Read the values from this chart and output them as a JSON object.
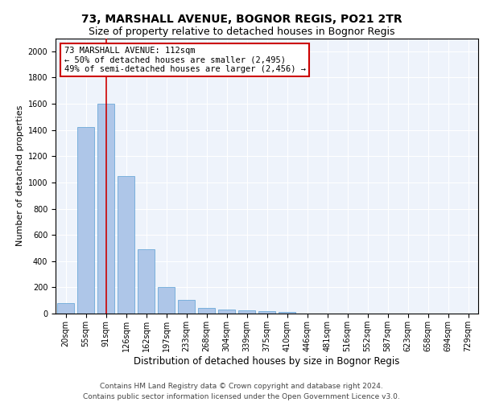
{
  "title": "73, MARSHALL AVENUE, BOGNOR REGIS, PO21 2TR",
  "subtitle": "Size of property relative to detached houses in Bognor Regis",
  "xlabel": "Distribution of detached houses by size in Bognor Regis",
  "ylabel": "Number of detached properties",
  "bar_labels": [
    "20sqm",
    "55sqm",
    "91sqm",
    "126sqm",
    "162sqm",
    "197sqm",
    "233sqm",
    "268sqm",
    "304sqm",
    "339sqm",
    "375sqm",
    "410sqm",
    "446sqm",
    "481sqm",
    "516sqm",
    "552sqm",
    "587sqm",
    "623sqm",
    "658sqm",
    "694sqm",
    "729sqm"
  ],
  "bar_values": [
    80,
    1420,
    1600,
    1050,
    490,
    205,
    105,
    40,
    28,
    22,
    18,
    15,
    0,
    0,
    0,
    0,
    0,
    0,
    0,
    0,
    0
  ],
  "bar_color": "#aec6e8",
  "bar_edge_color": "#5a9fd4",
  "background_color": "#eef3fb",
  "grid_color": "#ffffff",
  "annotation_line1": "73 MARSHALL AVENUE: 112sqm",
  "annotation_line2": "← 50% of detached houses are smaller (2,495)",
  "annotation_line3": "49% of semi-detached houses are larger (2,456) →",
  "annotation_box_color": "#ffffff",
  "annotation_box_edge": "#cc0000",
  "red_line_x": 2.0,
  "ylim": [
    0,
    2100
  ],
  "yticks": [
    0,
    200,
    400,
    600,
    800,
    1000,
    1200,
    1400,
    1600,
    1800,
    2000
  ],
  "footer_text": "Contains HM Land Registry data © Crown copyright and database right 2024.\nContains public sector information licensed under the Open Government Licence v3.0.",
  "title_fontsize": 10,
  "subtitle_fontsize": 9,
  "ylabel_fontsize": 8,
  "xlabel_fontsize": 8.5,
  "tick_fontsize": 7,
  "annotation_fontsize": 7.5,
  "footer_fontsize": 6.5
}
